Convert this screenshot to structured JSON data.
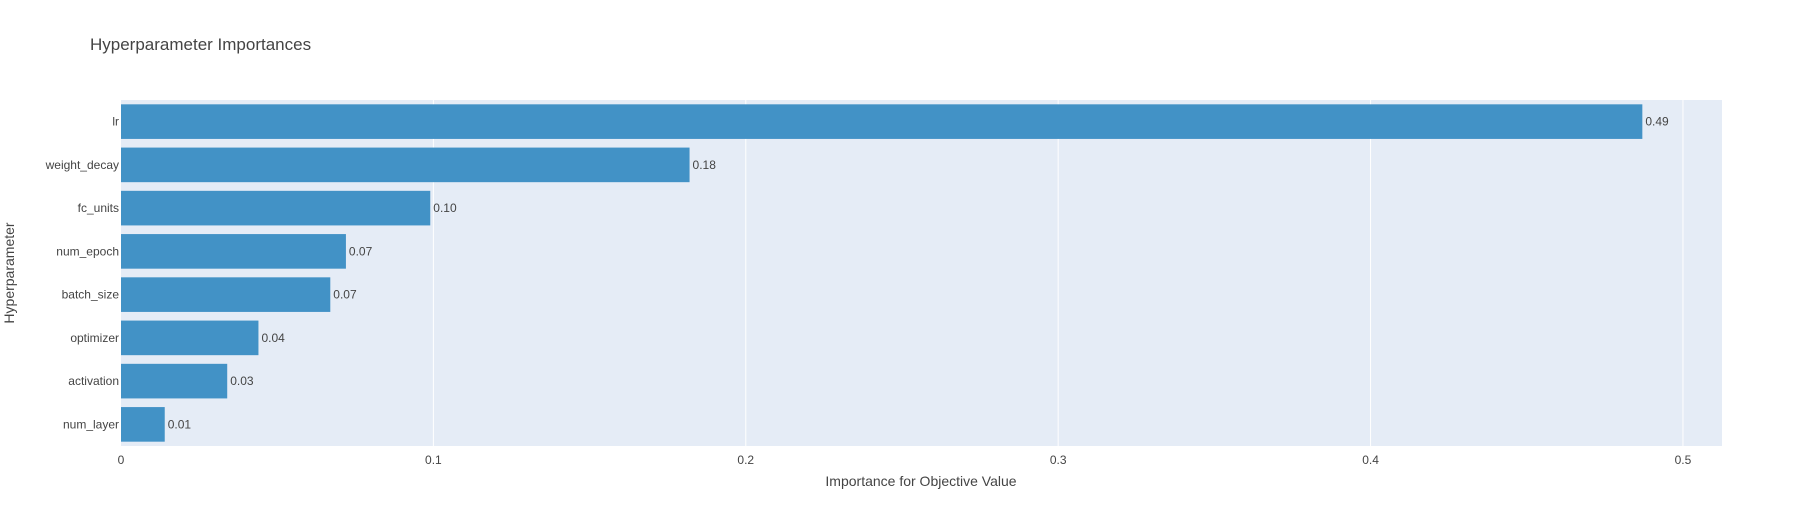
{
  "chart_data": {
    "type": "bar",
    "orientation": "horizontal",
    "title": "Hyperparameter Importances",
    "xlabel": "Importance for Objective Value",
    "ylabel": "Hyperparameter",
    "categories": [
      "lr",
      "weight_decay",
      "fc_units",
      "num_epoch",
      "batch_size",
      "optimizer",
      "activation",
      "num_layer"
    ],
    "values": [
      0.487,
      0.182,
      0.099,
      0.072,
      0.067,
      0.044,
      0.034,
      0.014
    ],
    "value_labels": [
      "0.49",
      "0.18",
      "0.10",
      "0.07",
      "0.07",
      "0.04",
      "0.03",
      "0.01"
    ],
    "x_ticks": [
      0,
      0.1,
      0.2,
      0.3,
      0.4,
      0.5
    ],
    "x_tick_labels": [
      "0",
      "0.1",
      "0.2",
      "0.3",
      "0.4",
      "0.5"
    ],
    "xlim": [
      0,
      0.5125
    ],
    "grid": true,
    "bar_color": "#4292c6",
    "plot_bg": "#e5ecf6"
  }
}
